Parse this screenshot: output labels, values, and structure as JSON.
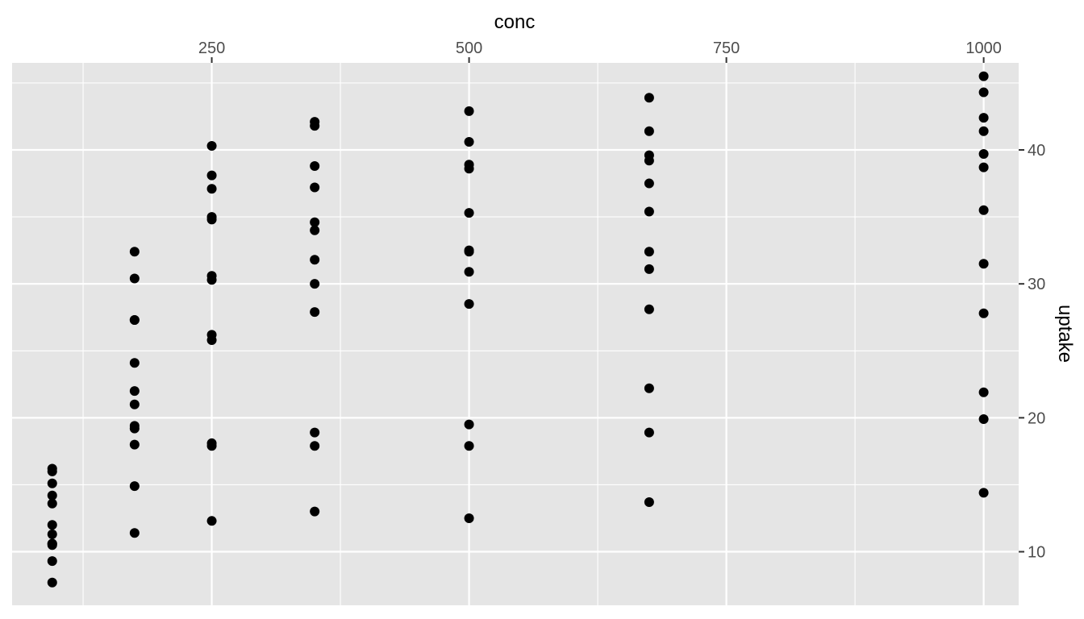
{
  "chart_data": {
    "type": "scatter",
    "title": "",
    "xlabel": "conc",
    "ylabel": "uptake",
    "x_axis_position": "top",
    "y_axis_position": "right",
    "xlim": [
      56,
      1034
    ],
    "ylim": [
      6,
      46.5
    ],
    "x_ticks": [
      250,
      500,
      750,
      1000
    ],
    "x_tick_labels": [
      "250",
      "500",
      "750",
      "1000"
    ],
    "x_minor_ticks": [
      125,
      375,
      625,
      875
    ],
    "y_ticks": [
      10,
      20,
      30,
      40
    ],
    "y_tick_labels": [
      "10",
      "20",
      "30",
      "40"
    ],
    "y_minor_ticks": [
      15,
      25,
      35,
      45
    ],
    "grid": true,
    "legend": "none",
    "colors": {
      "panel": "#e5e5e5",
      "grid": "#ffffff",
      "point": "#000000",
      "tick": "#4d4d4d"
    },
    "points": [
      {
        "x": 95,
        "y": 16.0
      },
      {
        "x": 95,
        "y": 13.6
      },
      {
        "x": 95,
        "y": 16.2
      },
      {
        "x": 95,
        "y": 14.2
      },
      {
        "x": 95,
        "y": 9.3
      },
      {
        "x": 95,
        "y": 15.1
      },
      {
        "x": 95,
        "y": 10.6
      },
      {
        "x": 95,
        "y": 12.0
      },
      {
        "x": 95,
        "y": 11.3
      },
      {
        "x": 95,
        "y": 10.5
      },
      {
        "x": 95,
        "y": 7.7
      },
      {
        "x": 95,
        "y": 10.6
      },
      {
        "x": 175,
        "y": 30.4
      },
      {
        "x": 175,
        "y": 27.3
      },
      {
        "x": 175,
        "y": 19.2
      },
      {
        "x": 175,
        "y": 32.4
      },
      {
        "x": 175,
        "y": 24.1
      },
      {
        "x": 175,
        "y": 22.0
      },
      {
        "x": 175,
        "y": 19.4
      },
      {
        "x": 175,
        "y": 14.9
      },
      {
        "x": 175,
        "y": 18.0
      },
      {
        "x": 175,
        "y": 21.0
      },
      {
        "x": 175,
        "y": 11.4
      },
      {
        "x": 175,
        "y": 27.3
      },
      {
        "x": 250,
        "y": 34.8
      },
      {
        "x": 250,
        "y": 37.1
      },
      {
        "x": 250,
        "y": 30.6
      },
      {
        "x": 250,
        "y": 35.0
      },
      {
        "x": 250,
        "y": 30.3
      },
      {
        "x": 250,
        "y": 25.8
      },
      {
        "x": 250,
        "y": 17.9
      },
      {
        "x": 250,
        "y": 18.1
      },
      {
        "x": 250,
        "y": 38.1
      },
      {
        "x": 250,
        "y": 40.3
      },
      {
        "x": 250,
        "y": 26.2
      },
      {
        "x": 250,
        "y": 12.3
      },
      {
        "x": 350,
        "y": 37.2
      },
      {
        "x": 350,
        "y": 41.8
      },
      {
        "x": 350,
        "y": 34.6
      },
      {
        "x": 350,
        "y": 38.8
      },
      {
        "x": 350,
        "y": 34.0
      },
      {
        "x": 350,
        "y": 27.9
      },
      {
        "x": 350,
        "y": 17.9
      },
      {
        "x": 350,
        "y": 18.9
      },
      {
        "x": 350,
        "y": 31.8
      },
      {
        "x": 350,
        "y": 42.1
      },
      {
        "x": 350,
        "y": 30.0
      },
      {
        "x": 350,
        "y": 13.0
      },
      {
        "x": 500,
        "y": 35.3
      },
      {
        "x": 500,
        "y": 40.6
      },
      {
        "x": 500,
        "y": 32.5
      },
      {
        "x": 500,
        "y": 38.6
      },
      {
        "x": 500,
        "y": 32.4
      },
      {
        "x": 500,
        "y": 28.5
      },
      {
        "x": 500,
        "y": 17.9
      },
      {
        "x": 500,
        "y": 19.5
      },
      {
        "x": 500,
        "y": 38.9
      },
      {
        "x": 500,
        "y": 42.9
      },
      {
        "x": 500,
        "y": 30.9
      },
      {
        "x": 500,
        "y": 12.5
      },
      {
        "x": 675,
        "y": 39.2
      },
      {
        "x": 675,
        "y": 41.4
      },
      {
        "x": 675,
        "y": 35.4
      },
      {
        "x": 675,
        "y": 37.5
      },
      {
        "x": 675,
        "y": 31.1
      },
      {
        "x": 675,
        "y": 28.1
      },
      {
        "x": 675,
        "y": 18.9
      },
      {
        "x": 675,
        "y": 22.2
      },
      {
        "x": 675,
        "y": 39.6
      },
      {
        "x": 675,
        "y": 43.9
      },
      {
        "x": 675,
        "y": 32.4
      },
      {
        "x": 675,
        "y": 13.7
      },
      {
        "x": 1000,
        "y": 39.7
      },
      {
        "x": 1000,
        "y": 44.3
      },
      {
        "x": 1000,
        "y": 35.5
      },
      {
        "x": 1000,
        "y": 42.4
      },
      {
        "x": 1000,
        "y": 31.5
      },
      {
        "x": 1000,
        "y": 27.8
      },
      {
        "x": 1000,
        "y": 19.9
      },
      {
        "x": 1000,
        "y": 21.9
      },
      {
        "x": 1000,
        "y": 38.7
      },
      {
        "x": 1000,
        "y": 45.5
      },
      {
        "x": 1000,
        "y": 41.4
      },
      {
        "x": 1000,
        "y": 14.4
      }
    ]
  }
}
